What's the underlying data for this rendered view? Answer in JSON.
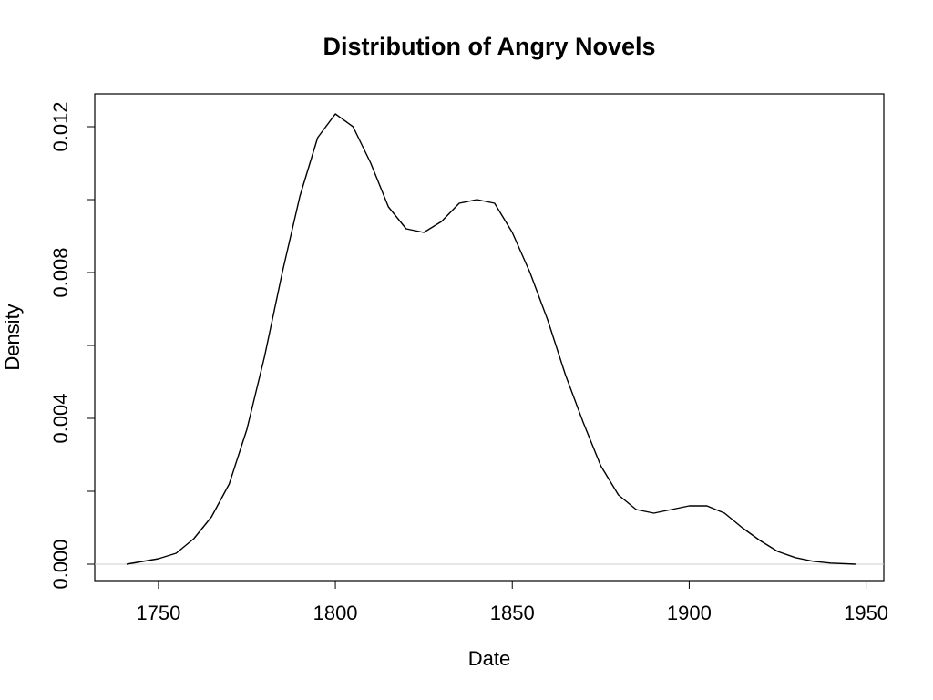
{
  "chart_data": {
    "type": "line",
    "title": "Distribution of Angry Novels",
    "x_label": "Date",
    "y_label": "Density",
    "x": [
      1741,
      1750,
      1755,
      1760,
      1765,
      1770,
      1775,
      1780,
      1785,
      1790,
      1795,
      1800,
      1805,
      1810,
      1815,
      1820,
      1825,
      1830,
      1835,
      1840,
      1845,
      1850,
      1855,
      1860,
      1865,
      1870,
      1875,
      1880,
      1885,
      1890,
      1895,
      1900,
      1905,
      1910,
      1915,
      1920,
      1925,
      1930,
      1935,
      1940,
      1947
    ],
    "values": [
      0.0,
      0.00015,
      0.0003,
      0.0007,
      0.0013,
      0.0022,
      0.0037,
      0.0057,
      0.008,
      0.0101,
      0.0117,
      0.01235,
      0.012,
      0.011,
      0.0098,
      0.0092,
      0.0091,
      0.0094,
      0.0099,
      0.01,
      0.0099,
      0.0091,
      0.008,
      0.0067,
      0.0052,
      0.0039,
      0.0027,
      0.0019,
      0.0015,
      0.0014,
      0.0015,
      0.0016,
      0.0016,
      0.0014,
      0.001,
      0.00065,
      0.00035,
      0.00018,
      8e-05,
      3e-05,
      0.0
    ],
    "color": "#000000",
    "xlim": [
      1732,
      1955
    ],
    "xticks": [
      1750,
      1800,
      1850,
      1900,
      1950
    ],
    "ylim": [
      -0.00045,
      0.0129
    ],
    "yticks": [
      {
        "value": 0,
        "label": "0.000"
      },
      {
        "value": 0.004,
        "label": "0.004"
      },
      {
        "value": 0.008,
        "label": "0.008"
      },
      {
        "value": 0.012,
        "label": "0.012"
      }
    ],
    "yminor_ticks": [
      0.002,
      0.006,
      0.01
    ],
    "zero_line": true,
    "zero_line_color": "#cccccc"
  }
}
